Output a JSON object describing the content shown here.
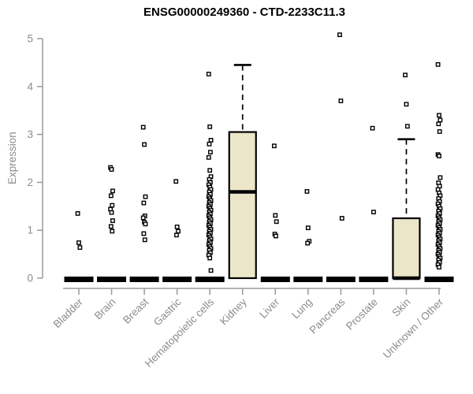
{
  "chart_data": {
    "type": "boxplot",
    "title": "ENSG00000249360 - CTD-2233C11.3",
    "ylabel": "Expression",
    "ylim": [
      0,
      5
    ],
    "yticks": [
      0,
      1,
      2,
      3,
      4,
      5
    ],
    "grid": false,
    "legend": "none",
    "colors": {
      "box_fill": "#ECE6C9",
      "box_border": "#000000",
      "axis_line": "#9a9a9a",
      "axis_text": "#8c8c8c",
      "title_text": "#000000",
      "point_fill": "#ffffff",
      "point_border": "#000000",
      "background": "#ffffff"
    },
    "categories": [
      "Bladder",
      "Brain",
      "Breast",
      "Gastric",
      "Hematopoietic cells",
      "Kidney",
      "Liver",
      "Lung",
      "Pancreas",
      "Prostate",
      "Skin",
      "Unknown / Other"
    ],
    "boxes": [
      {
        "category": "Bladder",
        "q1": 0,
        "median": 0,
        "q3": 0,
        "whisker_low": 0,
        "whisker_high": 0,
        "outliers": [
          1.35,
          0.74,
          0.64
        ]
      },
      {
        "category": "Brain",
        "q1": 0,
        "median": 0,
        "q3": 0,
        "whisker_low": 0,
        "whisker_high": 0,
        "outliers": [
          2.31,
          2.27,
          1.82,
          1.72,
          1.52,
          1.44,
          1.37,
          1.2,
          1.08,
          0.98
        ]
      },
      {
        "category": "Breast",
        "q1": 0,
        "median": 0,
        "q3": 0,
        "whisker_low": 0,
        "whisker_high": 0,
        "outliers": [
          3.15,
          2.79,
          1.7,
          1.57,
          1.3,
          1.26,
          1.17,
          1.13,
          0.93,
          0.8
        ]
      },
      {
        "category": "Gastric",
        "q1": 0,
        "median": 0,
        "q3": 0,
        "whisker_low": 0,
        "whisker_high": 0,
        "outliers": [
          2.02,
          1.07,
          0.98,
          0.9
        ]
      },
      {
        "category": "Hematopoietic cells",
        "q1": 0,
        "median": 0,
        "q3": 0,
        "whisker_low": 0,
        "whisker_high": 0,
        "outliers": [
          4.26,
          3.16,
          2.88,
          2.8,
          2.63,
          2.52,
          2.25,
          2.12,
          2.06,
          2.0,
          1.95,
          1.9,
          1.85,
          1.8,
          1.75,
          1.7,
          1.66,
          1.62,
          1.58,
          1.54,
          1.5,
          1.46,
          1.42,
          1.38,
          1.34,
          1.3,
          1.26,
          1.22,
          1.18,
          1.14,
          1.1,
          1.06,
          1.02,
          0.98,
          0.94,
          0.9,
          0.86,
          0.82,
          0.78,
          0.74,
          0.7,
          0.66,
          0.62,
          0.58,
          0.53,
          0.48,
          0.42,
          0.16
        ]
      },
      {
        "category": "Kidney",
        "q1": 0,
        "median": 1.8,
        "q3": 3.05,
        "whisker_low": 0,
        "whisker_high": 4.45,
        "outliers": []
      },
      {
        "category": "Liver",
        "q1": 0,
        "median": 0,
        "q3": 0,
        "whisker_low": 0,
        "whisker_high": 0,
        "outliers": [
          2.76,
          1.31,
          1.18,
          0.92,
          0.88
        ]
      },
      {
        "category": "Lung",
        "q1": 0,
        "median": 0,
        "q3": 0,
        "whisker_low": 0,
        "whisker_high": 0,
        "outliers": [
          1.81,
          1.05,
          0.77,
          0.73
        ]
      },
      {
        "category": "Pancreas",
        "q1": 0,
        "median": 0,
        "q3": 0,
        "whisker_low": 0,
        "whisker_high": 0,
        "outliers": [
          5.08,
          3.7,
          1.25
        ]
      },
      {
        "category": "Prostate",
        "q1": 0,
        "median": 0,
        "q3": 0,
        "whisker_low": 0,
        "whisker_high": 0,
        "outliers": [
          3.13,
          1.38
        ]
      },
      {
        "category": "Skin",
        "q1": 0,
        "median": 0,
        "q3": 1.25,
        "whisker_low": 0,
        "whisker_high": 2.9,
        "outliers": [
          4.24,
          3.63,
          3.17
        ]
      },
      {
        "category": "Unknown / Other",
        "q1": 0,
        "median": 0,
        "q3": 0,
        "whisker_low": 0,
        "whisker_high": 0,
        "outliers": [
          4.46,
          3.4,
          3.3,
          3.22,
          3.06,
          2.58,
          2.55,
          2.1,
          1.99,
          1.92,
          1.85,
          1.78,
          1.72,
          1.66,
          1.6,
          1.55,
          1.5,
          1.45,
          1.4,
          1.35,
          1.3,
          1.26,
          1.22,
          1.18,
          1.14,
          1.1,
          1.06,
          1.02,
          0.98,
          0.94,
          0.9,
          0.86,
          0.82,
          0.78,
          0.74,
          0.7,
          0.66,
          0.62,
          0.58,
          0.54,
          0.5,
          0.46,
          0.42,
          0.38,
          0.33,
          0.28,
          0.23
        ]
      }
    ]
  }
}
